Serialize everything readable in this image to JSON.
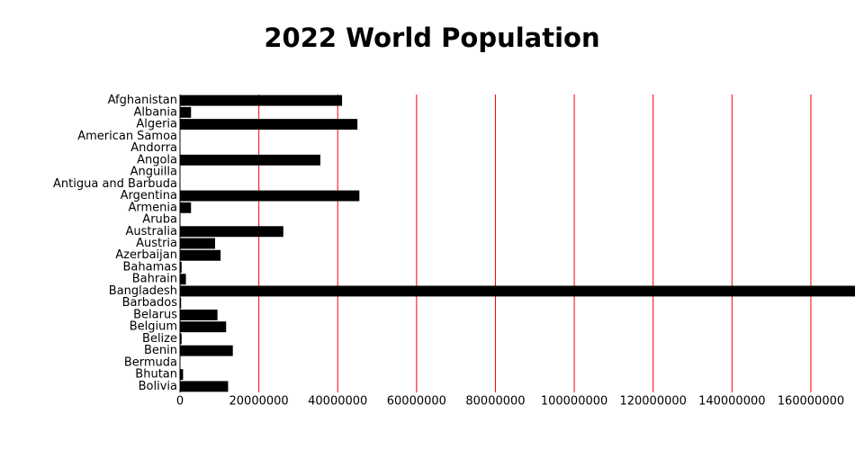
{
  "chart_data": {
    "type": "barh",
    "title": "2022 World Population",
    "categories": [
      "Afghanistan",
      "Albania",
      "Algeria",
      "American Samoa",
      "Andorra",
      "Angola",
      "Anguilla",
      "Antigua and Barbuda",
      "Argentina",
      "Armenia",
      "Aruba",
      "Australia",
      "Austria",
      "Azerbaijan",
      "Bahamas",
      "Bahrain",
      "Bangladesh",
      "Barbados",
      "Belarus",
      "Belgium",
      "Belize",
      "Benin",
      "Bermuda",
      "Bhutan",
      "Bolivia"
    ],
    "values": [
      41100000,
      2800000,
      45000000,
      44000,
      80000,
      35600000,
      16000,
      94000,
      45500000,
      2800000,
      106000,
      26200000,
      8900000,
      10300000,
      410000,
      1500000,
      171200000,
      281000,
      9500000,
      11700000,
      405000,
      13400000,
      64000,
      780000,
      12200000
    ],
    "color": "#000000",
    "xlim": [
      0,
      171200000
    ],
    "xticks": [
      0,
      20000000,
      40000000,
      60000000,
      80000000,
      100000000,
      120000000,
      140000000,
      160000000
    ],
    "grid": true,
    "grid_color": "#ff0000"
  }
}
